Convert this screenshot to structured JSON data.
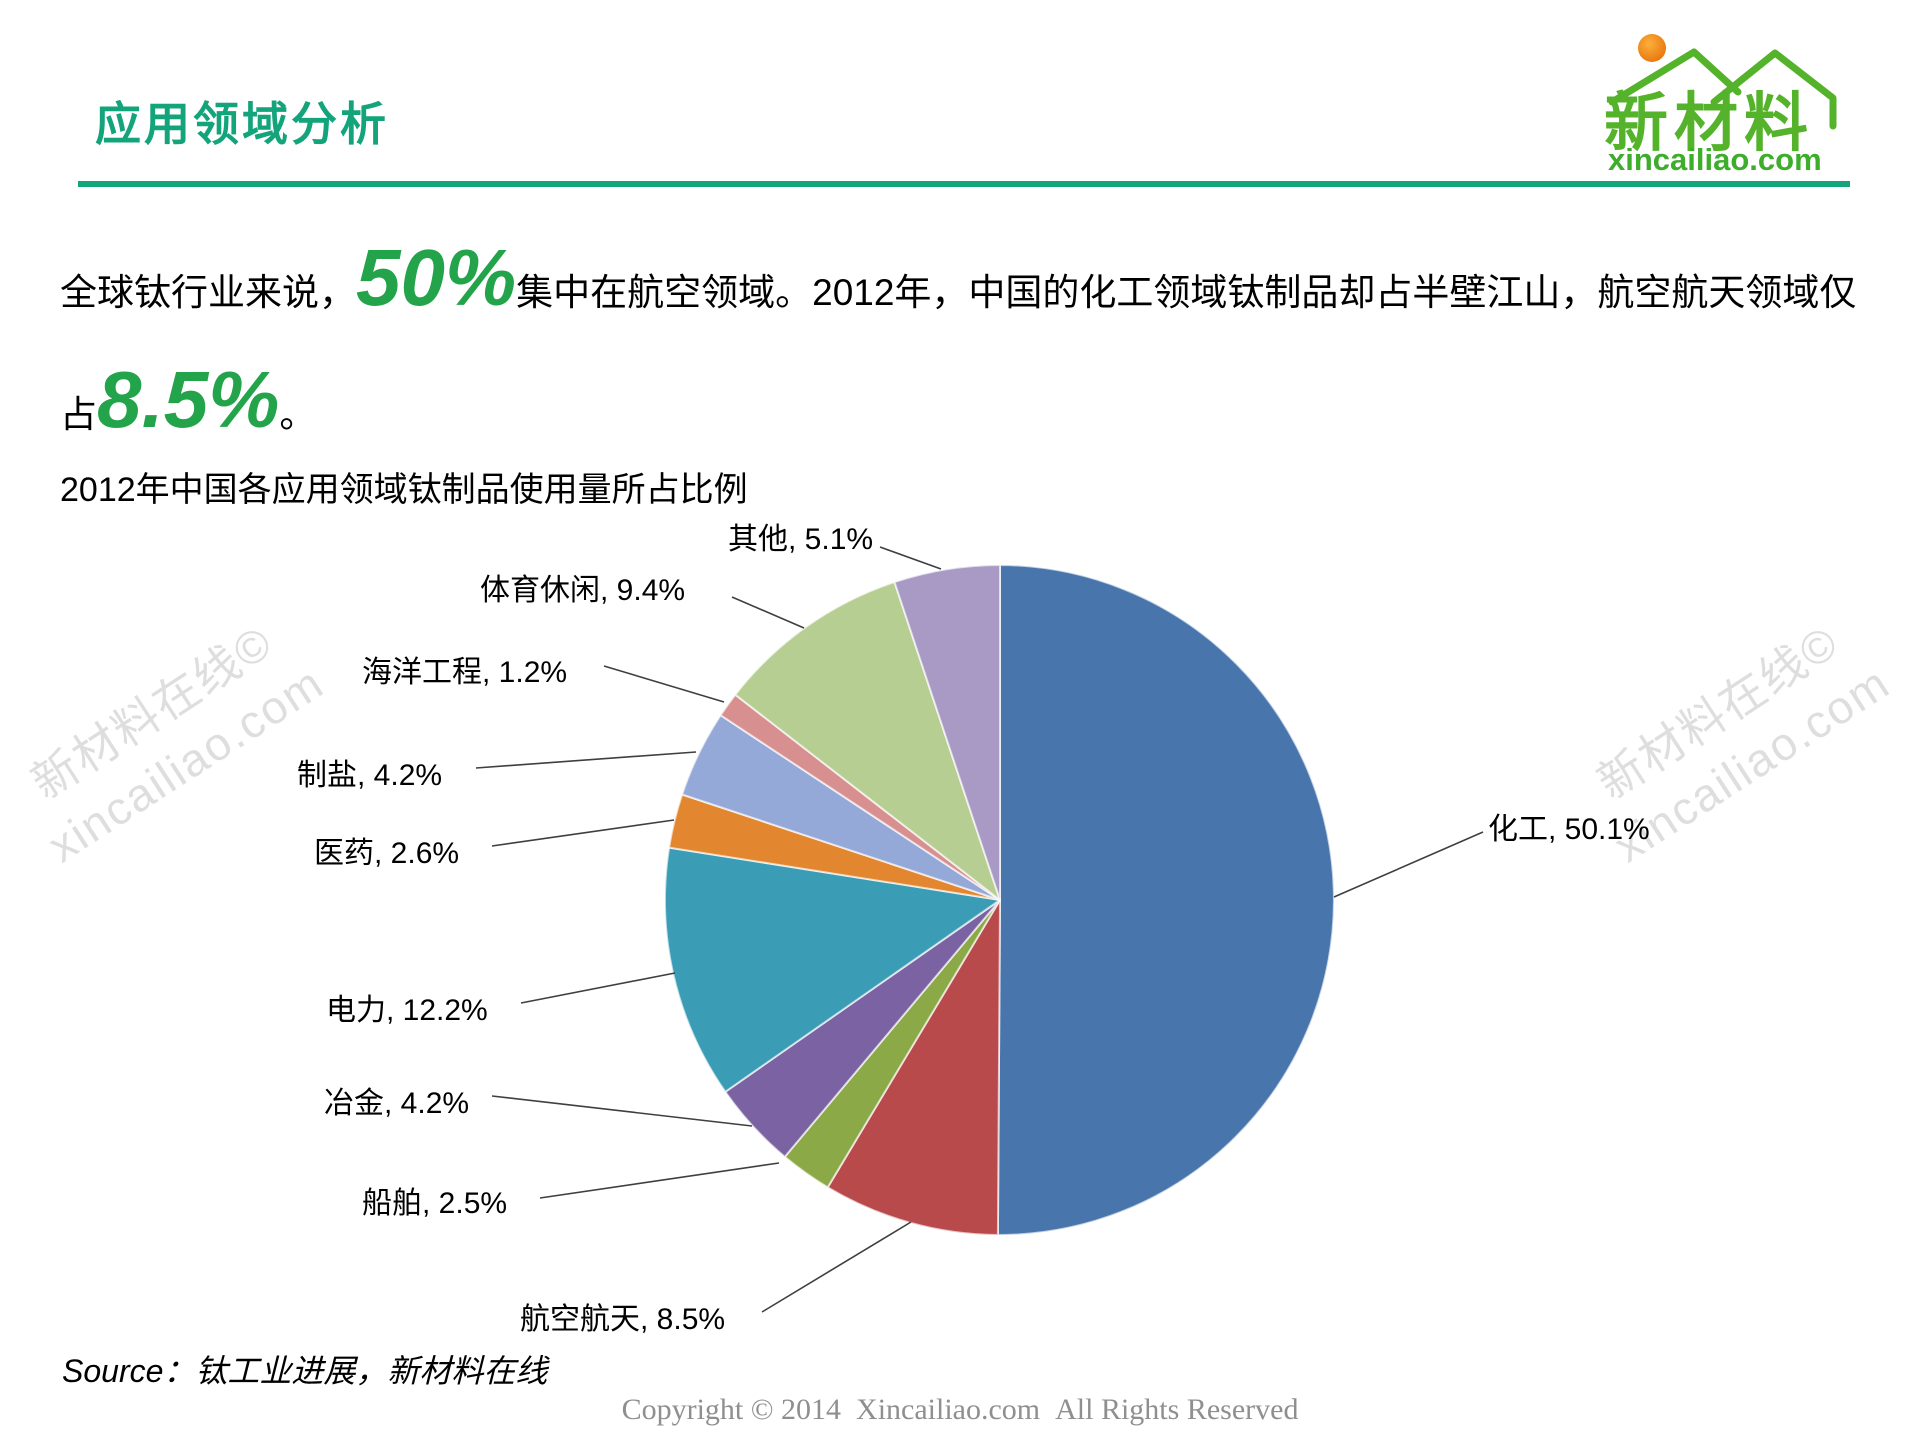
{
  "header": {
    "title": "应用领域分析"
  },
  "logo": {
    "brand": "新材料",
    "domain": "xincailiao.com"
  },
  "intro": {
    "line1_pre": "全球钛行业来说，",
    "line1_big": "50%",
    "line1_post": "集中在航空领域。2012年，中国的化工领域钛制品却占半壁江山，航空航天领域仅",
    "line2_pre": "占",
    "line2_big": "8.5%",
    "line2_post": "。"
  },
  "chart_data": {
    "type": "pie",
    "title": "2012年中国各应用领域钛制品使用量所占比例",
    "unit": "%",
    "direction": "clockwise",
    "start_angle_deg": 0,
    "legend": "none",
    "data_label_format": "name, value%",
    "segments": [
      {
        "label": "化工",
        "value": 50.1,
        "color": "#4876AC"
      },
      {
        "label": "航空航天",
        "value": 8.5,
        "color": "#B94A4C"
      },
      {
        "label": "船舶",
        "value": 2.5,
        "color": "#8CA948"
      },
      {
        "label": "冶金",
        "value": 4.2,
        "color": "#7B62A2"
      },
      {
        "label": "电力",
        "value": 12.2,
        "color": "#3B9DB5"
      },
      {
        "label": "医药",
        "value": 2.6,
        "color": "#E2862F"
      },
      {
        "label": "制盐",
        "value": 4.2,
        "color": "#95A9D8"
      },
      {
        "label": "海洋工程",
        "value": 1.2,
        "color": "#D78F8F"
      },
      {
        "label": "体育休闲",
        "value": 9.4,
        "color": "#B6CE92"
      },
      {
        "label": "其他",
        "value": 5.1,
        "color": "#A89AC5"
      }
    ]
  },
  "watermark": {
    "line1": "新材料在线©",
    "line2": "xincailiao.com"
  },
  "source": "Source：钛工业进展，新材料在线",
  "footer": "Copyright © 2014  Xincailiao.com  All Rights Reserved",
  "accent_colors": {
    "title_green": "#13A47C",
    "number_green": "#23A44B",
    "logo_green": "#54B32B",
    "logo_orange": "#F08519"
  }
}
